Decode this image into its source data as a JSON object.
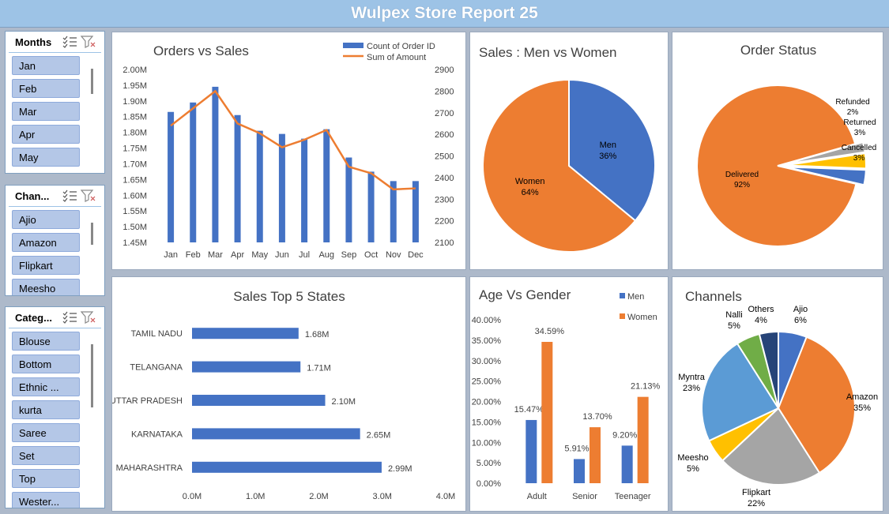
{
  "header": {
    "title": "Wulpex Store Report 25"
  },
  "slicers": [
    {
      "title": "Months",
      "items": [
        "Jan",
        "Feb",
        "Mar",
        "Apr",
        "May"
      ]
    },
    {
      "title": "Chan...",
      "items": [
        "Ajio",
        "Amazon",
        "Flipkart",
        "Meesho"
      ]
    },
    {
      "title": "Categ...",
      "items": [
        "Blouse",
        "Bottom",
        "Ethnic ...",
        "kurta",
        "Saree",
        "Set",
        "Top",
        "Wester..."
      ]
    }
  ],
  "colors": {
    "blue": "#4472c4",
    "orange": "#ed7d31",
    "gray": "#a5a5a5",
    "yellow": "#ffc000",
    "lightblue": "#5b9bd5",
    "green": "#70ad47",
    "navy": "#264478"
  },
  "chart_data": [
    {
      "id": "orders-vs-sales",
      "type": "bar",
      "title": "Orders vs Sales",
      "categories": [
        "Jan",
        "Feb",
        "Mar",
        "Apr",
        "May",
        "Jun",
        "Jul",
        "Aug",
        "Sep",
        "Oct",
        "Nov",
        "Dec"
      ],
      "series": [
        {
          "name": "Count of Order ID",
          "kind": "bar",
          "axis": "left",
          "values": [
            1.865,
            1.895,
            1.945,
            1.855,
            1.805,
            1.795,
            1.78,
            1.81,
            1.72,
            1.675,
            1.645,
            1.645
          ]
        },
        {
          "name": "Sum of Amount",
          "kind": "line",
          "axis": "right",
          "values": [
            2640,
            2720,
            2800,
            2650,
            2605,
            2540,
            2575,
            2620,
            2450,
            2420,
            2345,
            2350
          ]
        }
      ],
      "ylim": [
        1.45,
        2.0
      ],
      "yticks": [
        "2.00M",
        "1.95M",
        "1.90M",
        "1.85M",
        "1.80M",
        "1.75M",
        "1.70M",
        "1.65M",
        "1.60M",
        "1.55M",
        "1.50M",
        "1.45M"
      ],
      "y2lim": [
        2100,
        2900
      ],
      "y2ticks": [
        "2900",
        "2800",
        "2700",
        "2600",
        "2500",
        "2400",
        "2300",
        "2200",
        "2100"
      ],
      "legend": "top-right"
    },
    {
      "id": "sales-men-women",
      "type": "pie",
      "title": "Sales : Men vs Women",
      "slices": [
        {
          "name": "Men",
          "value": 36,
          "label": "36%"
        },
        {
          "name": "Women",
          "value": 64,
          "label": "64%"
        }
      ]
    },
    {
      "id": "order-status",
      "type": "pie",
      "title": "Order Status",
      "slices": [
        {
          "name": "Delivered",
          "value": 92,
          "label": "92%"
        },
        {
          "name": "Refunded",
          "value": 2,
          "label": "2%"
        },
        {
          "name": "Returned",
          "value": 3,
          "label": "3%"
        },
        {
          "name": "Cancelled",
          "value": 3,
          "label": "3%"
        }
      ]
    },
    {
      "id": "top-states",
      "type": "bar",
      "orientation": "horizontal",
      "title": "Sales Top 5 States",
      "categories": [
        "TAMIL NADU",
        "TELANGANA",
        "UTTAR PRADESH",
        "KARNATAKA",
        "MAHARASHTRA"
      ],
      "values": [
        1.68,
        1.71,
        2.1,
        2.65,
        2.99
      ],
      "labels": [
        "1.68M",
        "1.71M",
        "2.10M",
        "2.65M",
        "2.99M"
      ],
      "xlim": [
        0,
        4
      ],
      "xticks": [
        "0.0M",
        "1.0M",
        "2.0M",
        "3.0M",
        "4.0M"
      ]
    },
    {
      "id": "age-vs-gender",
      "type": "bar",
      "title": "Age Vs Gender",
      "categories": [
        "Adult",
        "Senior",
        "Teenager"
      ],
      "series": [
        {
          "name": "Men",
          "values": [
            15.47,
            5.91,
            9.2
          ],
          "labels": [
            "15.47%",
            "5.91%",
            "9.20%"
          ]
        },
        {
          "name": "Women",
          "values": [
            34.59,
            13.7,
            21.13
          ],
          "labels": [
            "34.59%",
            "13.70%",
            "21.13%"
          ]
        }
      ],
      "ylim": [
        0,
        40
      ],
      "yticks": [
        "40.00%",
        "35.00%",
        "30.00%",
        "25.00%",
        "20.00%",
        "15.00%",
        "10.00%",
        "5.00%",
        "0.00%"
      ],
      "legend": "top-right"
    },
    {
      "id": "channels",
      "type": "pie",
      "title": "Channels",
      "slices": [
        {
          "name": "Ajio",
          "value": 6,
          "label": "6%"
        },
        {
          "name": "Amazon",
          "value": 35,
          "label": "35%"
        },
        {
          "name": "Flipkart",
          "value": 22,
          "label": "22%"
        },
        {
          "name": "Meesho",
          "value": 5,
          "label": "5%"
        },
        {
          "name": "Myntra",
          "value": 23,
          "label": "23%"
        },
        {
          "name": "Nalli",
          "value": 5,
          "label": "5%"
        },
        {
          "name": "Others",
          "value": 4,
          "label": "4%"
        }
      ]
    }
  ]
}
